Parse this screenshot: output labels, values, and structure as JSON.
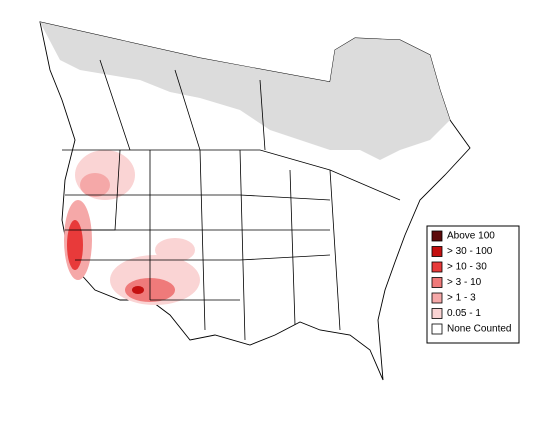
{
  "legend": {
    "items": [
      {
        "label": "Above 100",
        "color": "#5c0a0a"
      },
      {
        "label": "> 30 - 100",
        "color": "#c41010"
      },
      {
        "label": "> 10 - 30",
        "color": "#e83a3a"
      },
      {
        "label": "> 3 - 10",
        "color": "#ef7a7a"
      },
      {
        "label": "> 1 - 3",
        "color": "#f5a8a8"
      },
      {
        "label": "0.05 - 1",
        "color": "#fad4d4"
      },
      {
        "label": "None Counted",
        "color": "#ffffff"
      }
    ]
  }
}
